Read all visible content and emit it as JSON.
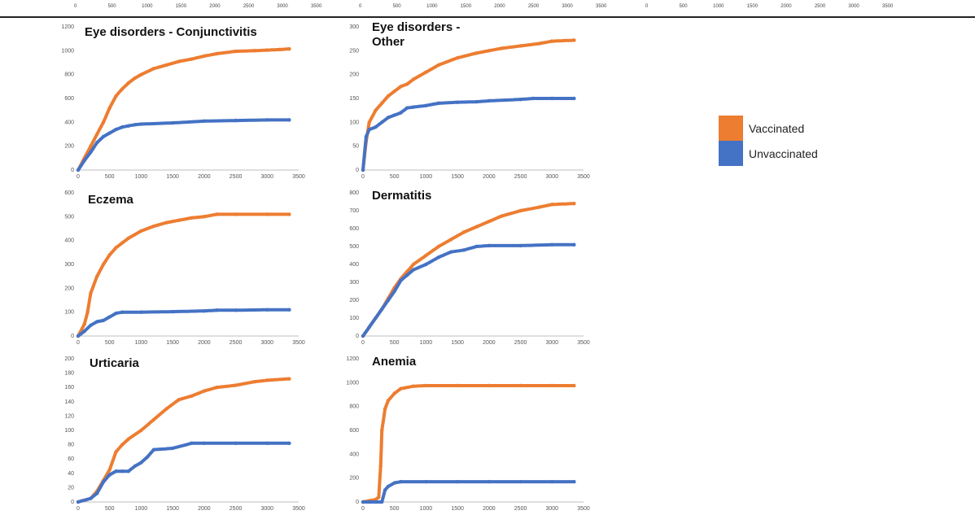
{
  "top_strip": {
    "left_ticks": [
      "0",
      "500",
      "1000",
      "1500",
      "2000",
      "2500",
      "3000",
      "3500"
    ],
    "mid_ticks": [
      "0",
      "500",
      "1000",
      "1500",
      "2000",
      "2500",
      "3000",
      "3500"
    ],
    "right_ticks": [
      "0",
      "500",
      "1000",
      "1500",
      "2000",
      "2500",
      "3000",
      "3500"
    ]
  },
  "legend": {
    "items": [
      {
        "label": "Vaccinated",
        "color": "#ed7d31"
      },
      {
        "label": "Unvaccinated",
        "color": "#4472c4"
      }
    ]
  },
  "chart_data": [
    {
      "type": "line",
      "title": "Eye disorders - Conjunctivitis",
      "xlabel": "",
      "ylabel": "",
      "xlim": [
        0,
        3500
      ],
      "ylim": [
        0,
        1200
      ],
      "x_ticks": [
        0,
        500,
        1000,
        1500,
        2000,
        2500,
        3000,
        3500
      ],
      "y_ticks": [
        0,
        200,
        400,
        600,
        800,
        1000,
        1200
      ],
      "grid": false,
      "series": [
        {
          "name": "Vaccinated",
          "color": "#ed7d31",
          "x": [
            0,
            100,
            200,
            300,
            400,
            500,
            600,
            700,
            800,
            900,
            1000,
            1200,
            1400,
            1600,
            1800,
            2000,
            2200,
            2500,
            2800,
            3000,
            3200,
            3350
          ],
          "y": [
            0,
            100,
            200,
            300,
            400,
            520,
            620,
            680,
            730,
            770,
            800,
            850,
            880,
            910,
            930,
            955,
            975,
            995,
            1000,
            1005,
            1010,
            1015
          ]
        },
        {
          "name": "Unvaccinated",
          "color": "#4472c4",
          "x": [
            0,
            100,
            200,
            300,
            400,
            500,
            600,
            700,
            800,
            900,
            1000,
            1500,
            2000,
            2500,
            3000,
            3350
          ],
          "y": [
            0,
            80,
            150,
            230,
            280,
            310,
            340,
            360,
            370,
            380,
            385,
            395,
            410,
            415,
            420,
            420
          ]
        }
      ]
    },
    {
      "type": "line",
      "title": "Eye disorders -\nOther",
      "xlabel": "",
      "ylabel": "",
      "xlim": [
        0,
        3500
      ],
      "ylim": [
        0,
        300
      ],
      "x_ticks": [
        0,
        500,
        1000,
        1500,
        2000,
        2500,
        3000,
        3500
      ],
      "y_ticks": [
        0,
        50,
        100,
        150,
        200,
        250,
        300
      ],
      "grid": false,
      "series": [
        {
          "name": "Vaccinated",
          "color": "#ed7d31",
          "x": [
            0,
            50,
            100,
            200,
            300,
            400,
            500,
            600,
            700,
            800,
            1000,
            1200,
            1500,
            1800,
            2000,
            2200,
            2500,
            2800,
            3000,
            3350
          ],
          "y": [
            0,
            60,
            100,
            125,
            140,
            155,
            165,
            175,
            180,
            190,
            205,
            220,
            235,
            245,
            250,
            255,
            260,
            265,
            270,
            272
          ]
        },
        {
          "name": "Unvaccinated",
          "color": "#4472c4",
          "x": [
            0,
            50,
            100,
            200,
            300,
            400,
            500,
            600,
            700,
            800,
            1000,
            1200,
            1500,
            1800,
            2000,
            2500,
            2700,
            3000,
            3350
          ],
          "y": [
            0,
            70,
            85,
            90,
            100,
            110,
            115,
            120,
            130,
            132,
            135,
            140,
            142,
            143,
            145,
            148,
            150,
            150,
            150
          ]
        }
      ]
    },
    {
      "type": "line",
      "title": "Eczema",
      "xlabel": "",
      "ylabel": "",
      "xlim": [
        0,
        3500
      ],
      "ylim": [
        0,
        600
      ],
      "x_ticks": [
        0,
        500,
        1000,
        1500,
        2000,
        2500,
        3000,
        3500
      ],
      "y_ticks": [
        0,
        100,
        200,
        300,
        400,
        500,
        600
      ],
      "grid": false,
      "series": [
        {
          "name": "Vaccinated",
          "color": "#ed7d31",
          "x": [
            0,
            100,
            150,
            200,
            300,
            400,
            500,
            600,
            700,
            800,
            1000,
            1200,
            1400,
            1600,
            1800,
            2000,
            2200,
            2500,
            3000,
            3350
          ],
          "y": [
            0,
            50,
            100,
            180,
            250,
            300,
            340,
            370,
            390,
            410,
            440,
            460,
            475,
            485,
            495,
            500,
            510,
            510,
            510,
            510
          ]
        },
        {
          "name": "Unvaccinated",
          "color": "#4472c4",
          "x": [
            0,
            100,
            200,
            300,
            400,
            500,
            600,
            700,
            1000,
            1500,
            2000,
            2200,
            2500,
            3000,
            3350
          ],
          "y": [
            0,
            20,
            45,
            60,
            65,
            80,
            95,
            100,
            100,
            102,
            105,
            108,
            108,
            110,
            110
          ]
        }
      ]
    },
    {
      "type": "line",
      "title": "Dermatitis",
      "xlabel": "",
      "ylabel": "",
      "xlim": [
        0,
        3500
      ],
      "ylim": [
        0,
        800
      ],
      "x_ticks": [
        0,
        500,
        1000,
        1500,
        2000,
        2500,
        3000,
        3500
      ],
      "y_ticks": [
        0,
        100,
        200,
        300,
        400,
        500,
        600,
        700,
        800
      ],
      "grid": false,
      "series": [
        {
          "name": "Vaccinated",
          "color": "#ed7d31",
          "x": [
            0,
            100,
            200,
            300,
            400,
            500,
            600,
            700,
            800,
            1000,
            1200,
            1400,
            1600,
            1800,
            2000,
            2200,
            2500,
            2800,
            3000,
            3350
          ],
          "y": [
            0,
            50,
            100,
            150,
            210,
            270,
            320,
            360,
            400,
            450,
            500,
            540,
            580,
            610,
            640,
            670,
            700,
            720,
            735,
            740
          ]
        },
        {
          "name": "Unvaccinated",
          "color": "#4472c4",
          "x": [
            0,
            100,
            200,
            300,
            400,
            500,
            600,
            700,
            800,
            1000,
            1200,
            1400,
            1600,
            1800,
            2000,
            2500,
            3000,
            3350
          ],
          "y": [
            0,
            50,
            100,
            150,
            200,
            250,
            310,
            340,
            370,
            400,
            440,
            470,
            480,
            500,
            505,
            505,
            510,
            510
          ]
        }
      ]
    },
    {
      "type": "line",
      "title": "Urticaria",
      "xlabel": "",
      "ylabel": "",
      "xlim": [
        0,
        3500
      ],
      "ylim": [
        0,
        200
      ],
      "x_ticks": [
        0,
        500,
        1000,
        1500,
        2000,
        2500,
        3000,
        3500
      ],
      "y_ticks": [
        0,
        20,
        40,
        60,
        80,
        100,
        120,
        140,
        160,
        180,
        200
      ],
      "grid": false,
      "series": [
        {
          "name": "Vaccinated",
          "color": "#ed7d31",
          "x": [
            0,
            200,
            300,
            400,
            500,
            600,
            700,
            800,
            1000,
            1200,
            1400,
            1600,
            1800,
            2000,
            2200,
            2500,
            2800,
            3000,
            3350
          ],
          "y": [
            0,
            5,
            15,
            30,
            45,
            70,
            80,
            88,
            100,
            115,
            130,
            143,
            148,
            155,
            160,
            163,
            168,
            170,
            172
          ]
        },
        {
          "name": "Unvaccinated",
          "color": "#4472c4",
          "x": [
            0,
            200,
            300,
            400,
            500,
            600,
            700,
            800,
            900,
            1000,
            1100,
            1200,
            1500,
            1800,
            2000,
            2500,
            3000,
            3350
          ],
          "y": [
            0,
            5,
            12,
            28,
            38,
            43,
            43,
            43,
            50,
            55,
            63,
            73,
            75,
            82,
            82,
            82,
            82,
            82
          ]
        }
      ]
    },
    {
      "type": "line",
      "title": "Anemia",
      "xlabel": "",
      "ylabel": "",
      "xlim": [
        0,
        3500
      ],
      "ylim": [
        0,
        1200
      ],
      "x_ticks": [
        0,
        500,
        1000,
        1500,
        2000,
        2500,
        3000,
        3500
      ],
      "y_ticks": [
        0,
        200,
        400,
        600,
        800,
        1000,
        1200
      ],
      "grid": false,
      "series": [
        {
          "name": "Vaccinated",
          "color": "#ed7d31",
          "x": [
            0,
            100,
            200,
            250,
            280,
            300,
            350,
            400,
            500,
            600,
            800,
            1000,
            1500,
            2000,
            2500,
            3000,
            3350
          ],
          "y": [
            0,
            10,
            20,
            40,
            300,
            600,
            780,
            850,
            910,
            950,
            970,
            975,
            975,
            975,
            975,
            975,
            975
          ]
        },
        {
          "name": "Unvaccinated",
          "color": "#4472c4",
          "x": [
            0,
            100,
            200,
            300,
            350,
            400,
            500,
            600,
            1000,
            1500,
            2000,
            2500,
            3000,
            3350
          ],
          "y": [
            0,
            0,
            0,
            0,
            100,
            130,
            160,
            170,
            170,
            170,
            170,
            170,
            170,
            170
          ]
        }
      ]
    }
  ]
}
